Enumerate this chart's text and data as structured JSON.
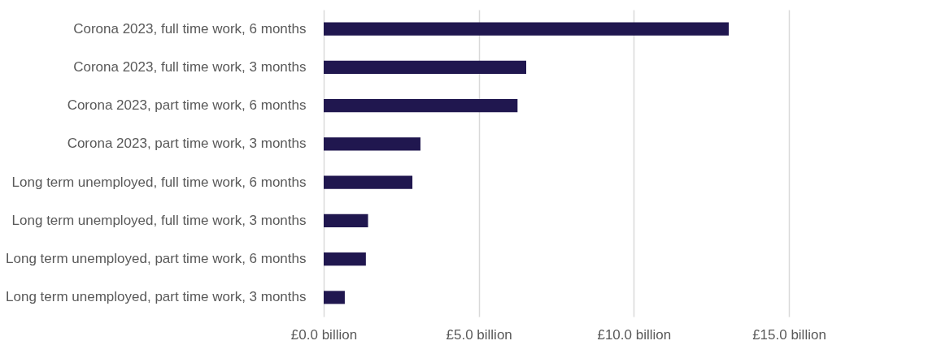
{
  "chart_data": {
    "type": "bar",
    "orientation": "horizontal",
    "categories": [
      "Corona 2023, full time work, 6 months",
      "Corona 2023, full time work, 3 months",
      "Corona 2023, part time work, 6 months",
      "Corona 2023, part time work, 3 months",
      "Long term unemployed, full time work, 6 months",
      "Long term unemployed, full time work, 3 months",
      "Long term unemployed, part time work, 6 months",
      "Long term unemployed, part time work, 3 months"
    ],
    "values": [
      13.06,
      6.53,
      6.25,
      3.12,
      2.86,
      1.43,
      1.36,
      0.68
    ],
    "color": "#20174f",
    "xlim": [
      0,
      15
    ],
    "xticks": [
      {
        "value": 0,
        "label": "£0.0 billion"
      },
      {
        "value": 5,
        "label": "£5.0 billion"
      },
      {
        "value": 10,
        "label": "£10.0 billion"
      },
      {
        "value": 15,
        "label": "£15.0 billion"
      }
    ],
    "grid": "x"
  }
}
